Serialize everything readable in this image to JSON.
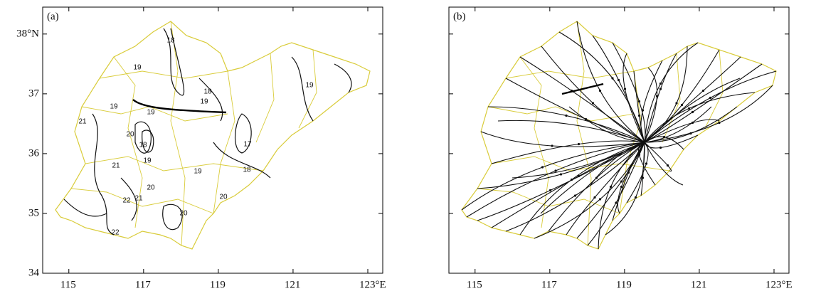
{
  "panels": [
    {
      "label": "(a)",
      "contour_labels": [
        18,
        19,
        18,
        19,
        19,
        19,
        19,
        21,
        20,
        18,
        17,
        21,
        19,
        19,
        18,
        20,
        22,
        21,
        20,
        20,
        22
      ]
    },
    {
      "label": "(b)"
    }
  ],
  "x_axis": {
    "lim": [
      114.3,
      123.4
    ],
    "ticks": [
      115,
      117,
      119,
      121,
      {
        "value": 123,
        "label": "123°E"
      }
    ]
  },
  "y_axis": {
    "lim": [
      34,
      38.45
    ],
    "ticks": [
      34,
      35,
      36,
      37,
      {
        "value": 38,
        "label": "38°N"
      }
    ]
  }
}
